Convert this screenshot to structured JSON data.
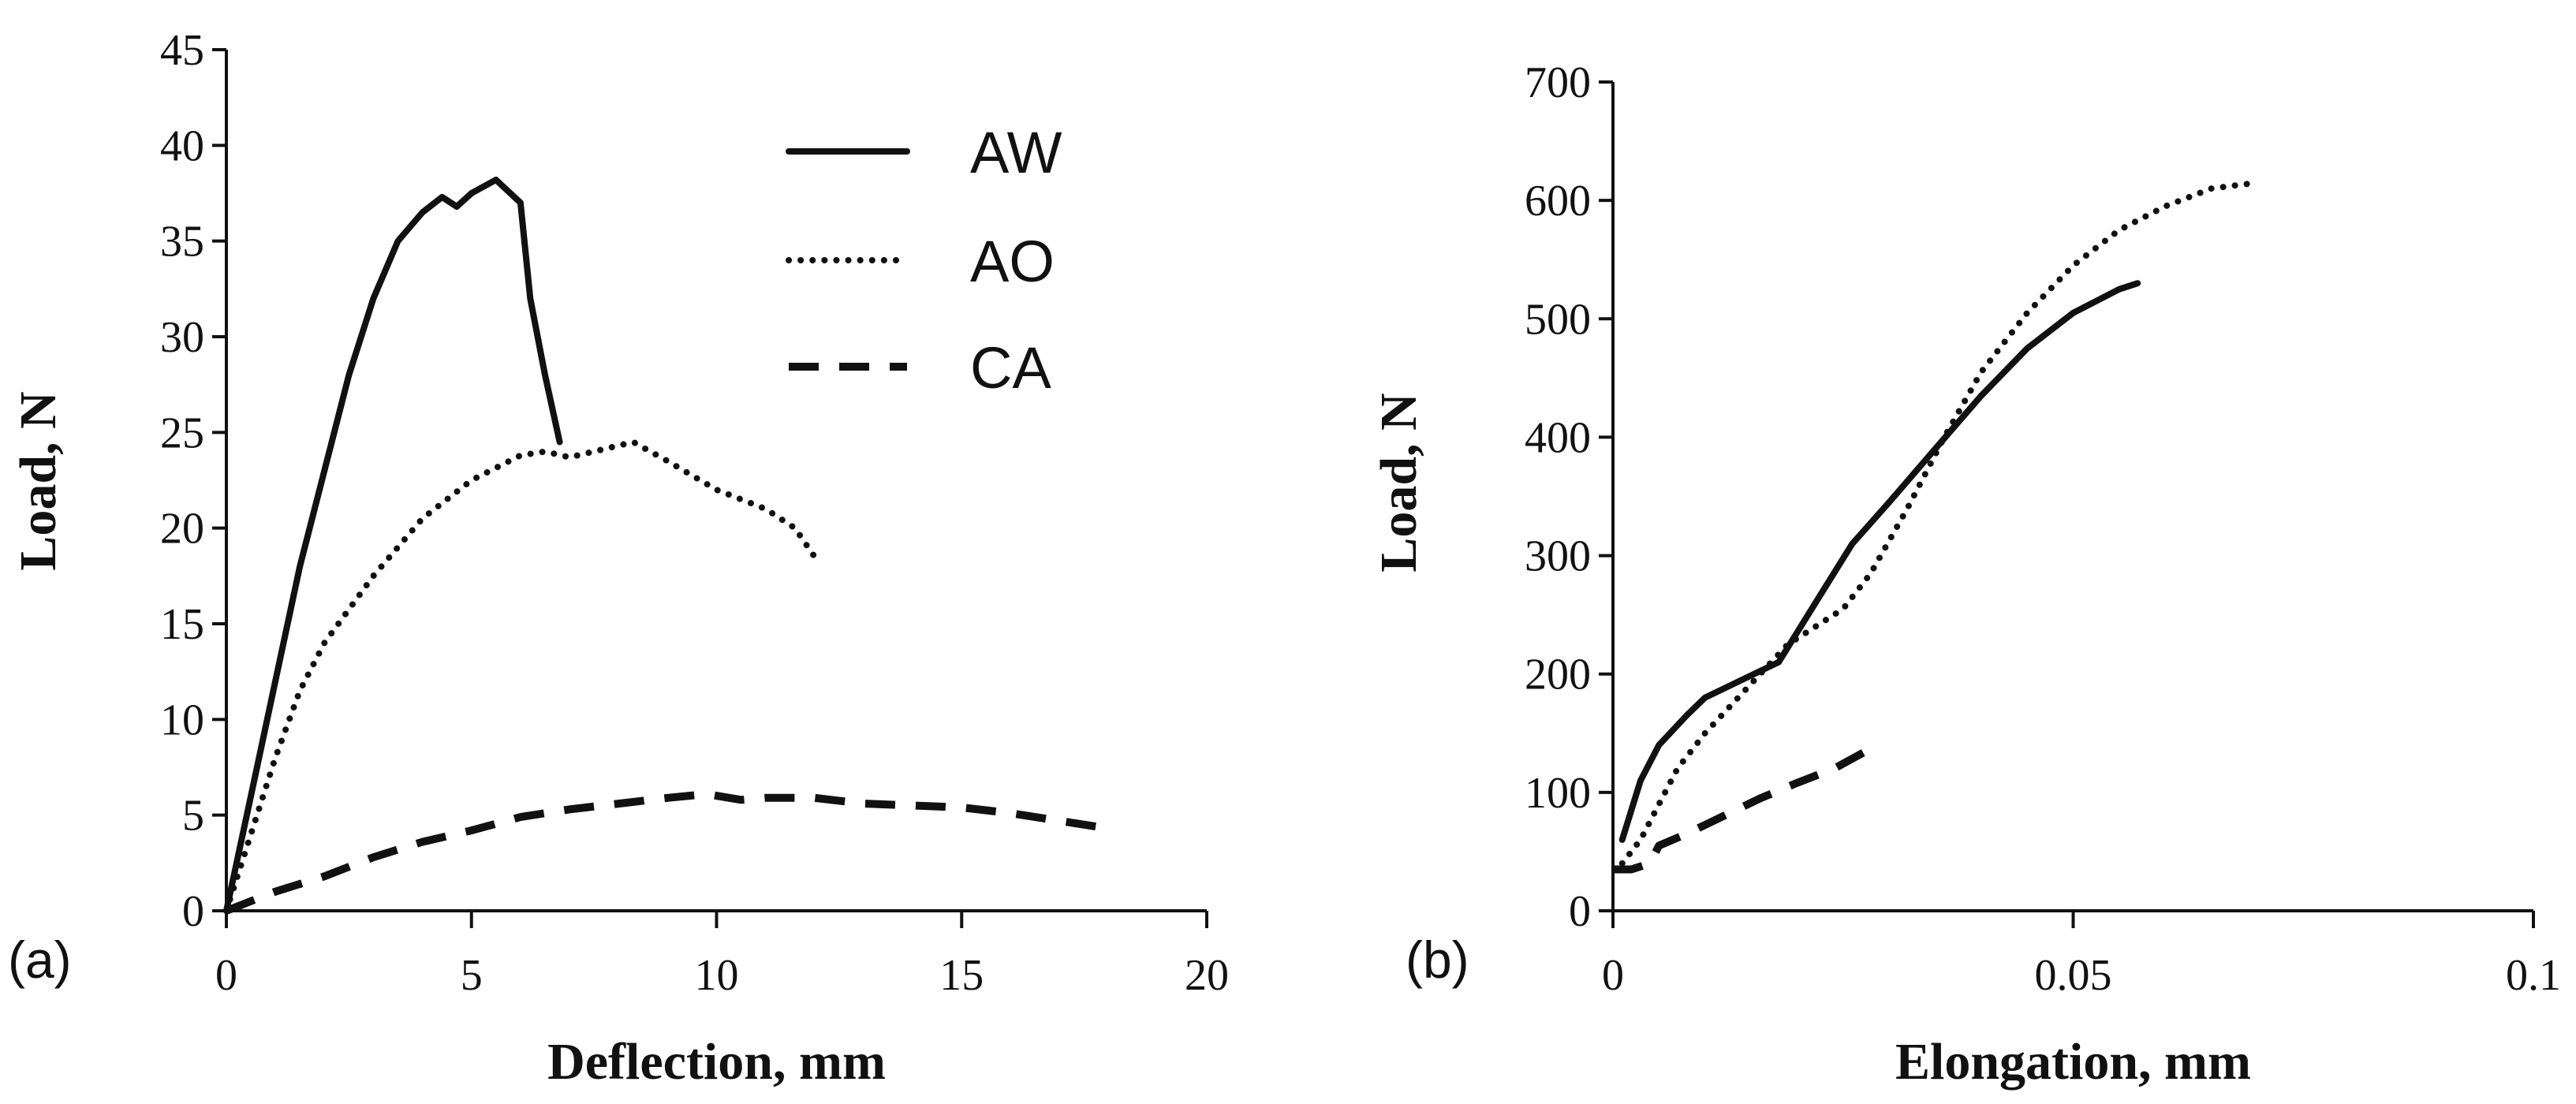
{
  "chart_data": [
    {
      "panel_label": "(a)",
      "type": "line",
      "xlabel": "Deflection, mm",
      "ylabel": "Load, N",
      "xlim": [
        0,
        20
      ],
      "ylim": [
        0,
        45
      ],
      "xticks": [
        0,
        5,
        10,
        15,
        20
      ],
      "yticks": [
        0,
        5,
        10,
        15,
        20,
        25,
        30,
        35,
        40,
        45
      ],
      "legend_position": "top-right",
      "series": [
        {
          "name": "AW",
          "style": "solid",
          "x": [
            0,
            0.5,
            1,
            1.5,
            2,
            2.5,
            3,
            3.5,
            4,
            4.4,
            4.7,
            5.0,
            5.5,
            6.0,
            6.2,
            6.5,
            6.8
          ],
          "y": [
            0,
            6,
            12,
            18,
            23,
            28,
            32,
            35,
            36.5,
            37.3,
            36.8,
            37.5,
            38.2,
            37.0,
            32,
            28,
            24.5
          ]
        },
        {
          "name": "AO",
          "style": "dotted",
          "x": [
            0,
            0.5,
            1,
            1.5,
            2,
            3,
            4,
            5,
            6,
            6.5,
            7,
            7.5,
            8.3,
            9,
            10,
            11,
            11.6,
            12
          ],
          "y": [
            0,
            4,
            8,
            11.5,
            14,
            17.5,
            20.5,
            22.5,
            23.8,
            24.0,
            23.7,
            24.0,
            24.5,
            23.5,
            22,
            21,
            20,
            18.5
          ]
        },
        {
          "name": "CA",
          "style": "dashed",
          "x": [
            0,
            1,
            2,
            3,
            4,
            5,
            6,
            7,
            8,
            9,
            9.8,
            10.5,
            11,
            12,
            13,
            14,
            15,
            16,
            17,
            18
          ],
          "y": [
            0,
            1.0,
            1.8,
            2.8,
            3.6,
            4.2,
            4.9,
            5.3,
            5.6,
            5.9,
            6.1,
            5.8,
            5.9,
            5.9,
            5.6,
            5.5,
            5.4,
            5.1,
            4.7,
            4.3
          ]
        }
      ]
    },
    {
      "panel_label": "(b)",
      "type": "line",
      "xlabel": "Elongation, mm",
      "ylabel": "Load, N",
      "xlim": [
        0,
        0.1
      ],
      "ylim": [
        0,
        700
      ],
      "xticks": [
        0,
        0.05,
        0.1
      ],
      "xtick_labels": [
        "0",
        "0.05",
        "0.1"
      ],
      "yticks": [
        0,
        100,
        200,
        300,
        400,
        500,
        600,
        700
      ],
      "series": [
        {
          "name": "AW",
          "style": "solid",
          "x": [
            0.001,
            0.003,
            0.005,
            0.008,
            0.01,
            0.014,
            0.018,
            0.022,
            0.026,
            0.03,
            0.035,
            0.04,
            0.045,
            0.05,
            0.055,
            0.057
          ],
          "y": [
            60,
            110,
            140,
            165,
            180,
            195,
            210,
            260,
            310,
            345,
            390,
            435,
            475,
            505,
            525,
            530
          ]
        },
        {
          "name": "AO",
          "style": "dotted",
          "x": [
            0.001,
            0.003,
            0.005,
            0.007,
            0.01,
            0.013,
            0.016,
            0.019,
            0.022,
            0.025,
            0.028,
            0.032,
            0.036,
            0.04,
            0.045,
            0.05,
            0.055,
            0.06,
            0.065,
            0.07
          ],
          "y": [
            40,
            60,
            90,
            120,
            150,
            175,
            200,
            225,
            240,
            255,
            285,
            340,
            400,
            455,
            505,
            545,
            575,
            595,
            610,
            615
          ]
        },
        {
          "name": "CA",
          "style": "dashed",
          "x": [
            0,
            0.002,
            0.004,
            0.005,
            0.008,
            0.012,
            0.016,
            0.02,
            0.024,
            0.028
          ],
          "y": [
            35,
            35,
            40,
            55,
            65,
            80,
            95,
            108,
            120,
            137
          ]
        }
      ]
    }
  ]
}
